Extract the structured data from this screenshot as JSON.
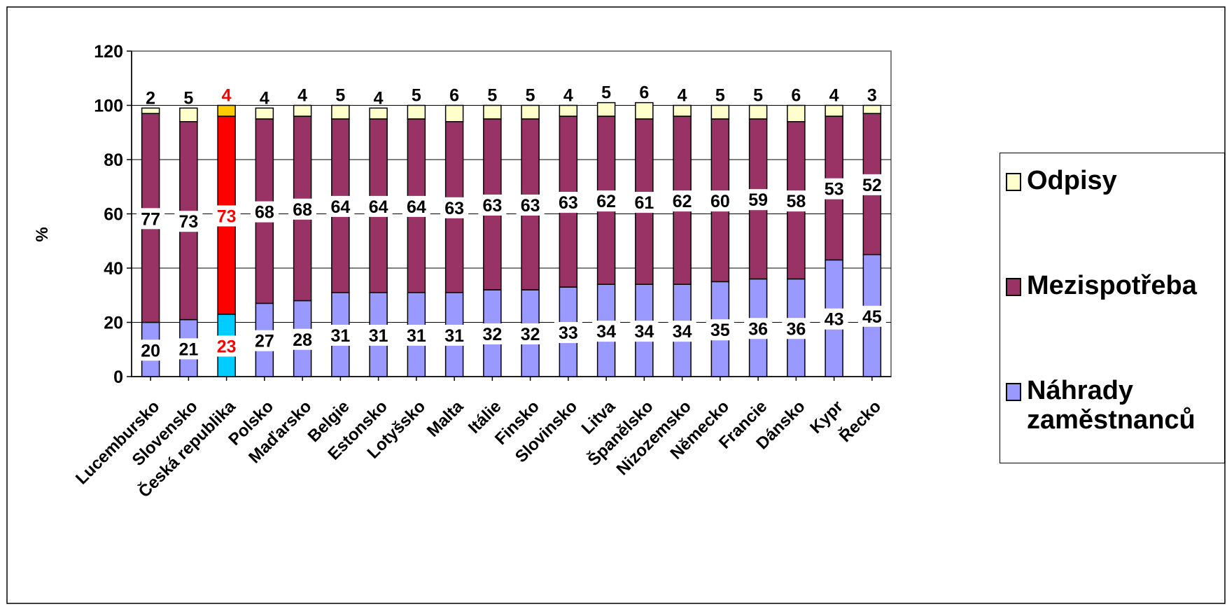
{
  "chart_data": {
    "type": "bar",
    "stacked": true,
    "title": "",
    "xlabel": "",
    "ylabel": "%",
    "ylim": [
      0,
      120
    ],
    "yticks": [
      0,
      20,
      40,
      60,
      80,
      100,
      120
    ],
    "grid": true,
    "legend_position": "right",
    "categories": [
      "Lucembursko",
      "Slovensko",
      "Česká republika",
      "Polsko",
      "Maďarsko",
      "Belgie",
      "Estonsko",
      "Lotyšsko",
      "Malta",
      "Itálie",
      "Finsko",
      "Slovinsko",
      "Litva",
      "Španělsko",
      "Nizozemsko",
      "Německo",
      "Francie",
      "Dánsko",
      "Kypr",
      "Řecko"
    ],
    "highlight_index": 2,
    "series": [
      {
        "name": "Náhrady zaměstnanců",
        "color": "#9999ff",
        "highlight_color": "#00ccff",
        "values": [
          20,
          21,
          23,
          27,
          28,
          31,
          31,
          31,
          31,
          32,
          32,
          33,
          34,
          34,
          34,
          35,
          36,
          36,
          43,
          45
        ]
      },
      {
        "name": "Mezispotřeba",
        "color": "#993366",
        "highlight_color": "#ff0000",
        "values": [
          77,
          73,
          73,
          68,
          68,
          64,
          64,
          64,
          63,
          63,
          63,
          63,
          62,
          61,
          62,
          60,
          59,
          58,
          53,
          52
        ]
      },
      {
        "name": "Odpisy",
        "color": "#ffffcc",
        "highlight_color": "#ffcc00",
        "values": [
          2,
          5,
          4,
          4,
          4,
          5,
          4,
          5,
          6,
          5,
          5,
          4,
          5,
          6,
          4,
          5,
          5,
          6,
          4,
          3
        ]
      }
    ],
    "label_color": "#000000",
    "highlight_label_color": "#ff0000"
  },
  "legend": {
    "items": [
      {
        "label": "Odpisy",
        "color": "#ffffcc"
      },
      {
        "label": "Mezispotřeba",
        "color": "#993366"
      },
      {
        "label": "Náhrady zaměstnanců",
        "color": "#9999ff"
      }
    ]
  }
}
